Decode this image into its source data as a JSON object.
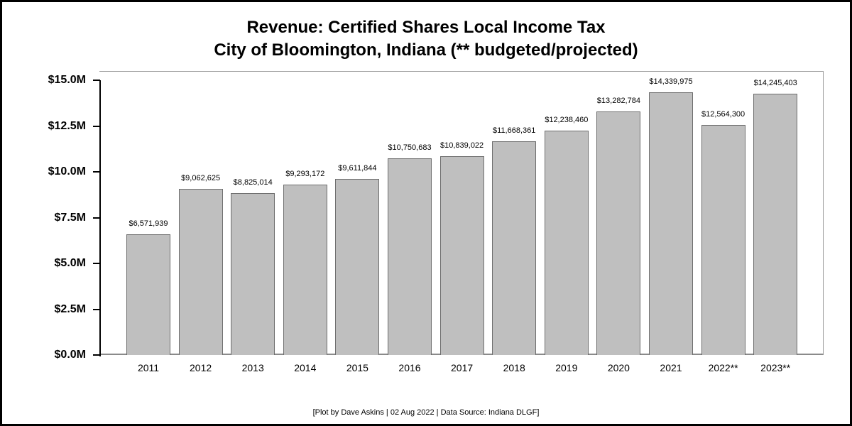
{
  "chart_data": {
    "type": "bar",
    "title": "Revenue: Certified Shares Local Income Tax",
    "subtitle": "City of Bloomington, Indiana (** budgeted/projected)",
    "xlabel": "",
    "ylabel": "",
    "ylim": [
      0,
      15000000
    ],
    "grid": false,
    "legend": null,
    "yticks": [
      "$0.0M",
      "$2.5M",
      "$5.0M",
      "$7.5M",
      "$10.0M",
      "$12.5M",
      "$15.0M"
    ],
    "categories": [
      "2011",
      "2012",
      "2013",
      "2014",
      "2015",
      "2016",
      "2017",
      "2018",
      "2019",
      "2020",
      "2021",
      "2022**",
      "2023**"
    ],
    "values": [
      6571939,
      9062625,
      8825014,
      9293172,
      9611844,
      10750683,
      10839022,
      11668361,
      12238460,
      13282784,
      14339975,
      12564300,
      14245403
    ],
    "value_labels": [
      "$6,571,939",
      "$9,062,625",
      "$8,825,014",
      "$9,293,172",
      "$9,611,844",
      "$10,750,683",
      "$10,839,022",
      "$11,668,361",
      "$12,238,460",
      "$13,282,784",
      "$14,339,975",
      "$12,564,300",
      "$14,245,403"
    ],
    "annotations": [
      "** budgeted/projected"
    ],
    "caption": "[Plot by Dave Askins | 02 Aug 2022 | Data Source: Indiana DLGF]",
    "bar_color": "#bfbfbf"
  },
  "header": {
    "title_line1": "Revenue: Certified Shares Local Income Tax",
    "title_line2": "City of Bloomington, Indiana (** budgeted/projected)"
  },
  "footer": {
    "caption": "[Plot by Dave Askins | 02 Aug 2022 | Data Source: Indiana DLGF]"
  }
}
